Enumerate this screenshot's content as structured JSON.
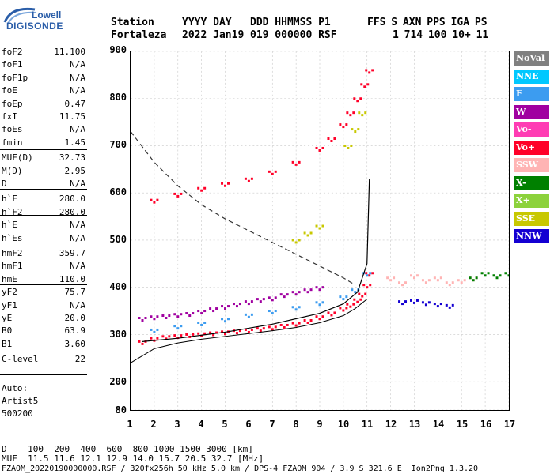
{
  "logo": {
    "brand_top": "Lowell",
    "brand_main": "DIGISONDE"
  },
  "header": {
    "labels": [
      "Station",
      "YYYY DAY",
      "DDD HHMMSS P1",
      "FFS S AXN PPS IGA PS"
    ],
    "values": [
      "Fortaleza",
      "2022 Jan19",
      "019 000000 RSF",
      "1 714 100 10+ 11"
    ]
  },
  "parameters": [
    {
      "name": "foF2",
      "value": "11.100"
    },
    {
      "name": "foF1",
      "value": "N/A"
    },
    {
      "name": "foF1p",
      "value": "N/A"
    },
    {
      "name": "foE",
      "value": "N/A"
    },
    {
      "name": "foEp",
      "value": "0.47"
    },
    {
      "name": "fxI",
      "value": "11.75"
    },
    {
      "name": "foEs",
      "value": "N/A"
    },
    {
      "name": "fmin",
      "value": "1.45"
    },
    {
      "name": "MUF(D)",
      "value": "32.73"
    },
    {
      "name": "M(D)",
      "value": "2.95"
    },
    {
      "name": "D",
      "value": "N/A"
    },
    {
      "name": "h`F",
      "value": "280.0"
    },
    {
      "name": "h`F2",
      "value": "280.0"
    },
    {
      "name": "h`E",
      "value": "N/A"
    },
    {
      "name": "h`Es",
      "value": "N/A"
    },
    {
      "name": "hmF2",
      "value": "359.7"
    },
    {
      "name": "hmF1",
      "value": "N/A"
    },
    {
      "name": "hmE",
      "value": "110.0"
    },
    {
      "name": "yF2",
      "value": "75.7"
    },
    {
      "name": "yF1",
      "value": "N/A"
    },
    {
      "name": "yE",
      "value": "20.0"
    },
    {
      "name": "B0",
      "value": "63.9"
    },
    {
      "name": "B1",
      "value": "3.60"
    },
    {
      "name": "C-level",
      "value": "22"
    }
  ],
  "auto_info": [
    "Auto:",
    "Artist5",
    "500200"
  ],
  "legend": [
    {
      "label": "NoVal",
      "color": "#808080"
    },
    {
      "label": "NNE",
      "color": "#00c8ff"
    },
    {
      "label": "E",
      "color": "#3c9cf0"
    },
    {
      "label": "W",
      "color": "#a000a0"
    },
    {
      "label": "Vo-",
      "color": "#ff3cb4"
    },
    {
      "label": "Vo+",
      "color": "#ff0028"
    },
    {
      "label": "SSW",
      "color": "#ffb4b4"
    },
    {
      "label": "X-",
      "color": "#008000"
    },
    {
      "label": "X+",
      "color": "#8cd23c"
    },
    {
      "label": "SSE",
      "color": "#c8c800"
    },
    {
      "label": "NNW",
      "color": "#1400d2"
    }
  ],
  "footer": {
    "d_line": "D    100  200  400  600  800 1000 1500 3000 [km]",
    "muf_line": "MUF  11.5 11.6 12.1 12.9 14.0 15.7 20.5 32.7 [MHz]",
    "file_line": "FZAOM_20220190000000.RSF / 320fx256h 50 kHz 5.0 km / DPS-4 FZAOM 904 / 3.9 S 321.6 E  Ion2Png 1.3.20"
  },
  "chart_data": {
    "type": "scatter",
    "title": "",
    "xlabel": "",
    "ylabel": "",
    "xlim": [
      1,
      17
    ],
    "ylim": [
      80,
      900
    ],
    "x_ticks": [
      "1",
      "2",
      "3",
      "4",
      "5",
      "6",
      "7",
      "8",
      "9",
      "10",
      "11",
      "12",
      "13",
      "14",
      "15",
      "16",
      "17"
    ],
    "y_ticks": [
      "80",
      "200",
      "300",
      "400",
      "500",
      "600",
      "700",
      "800",
      "900"
    ],
    "grid": true,
    "legend_position": "right",
    "series": [
      {
        "name": "Vo+",
        "color": "#ff0028",
        "x": [
          1.5,
          2,
          2.5,
          3,
          3.5,
          4,
          4.5,
          5,
          5.5,
          6,
          6.5,
          7,
          7.5,
          8,
          8.5,
          9,
          9.5,
          10,
          10.3,
          10.6,
          10.8,
          11.0,
          11.1
        ],
        "y": [
          285,
          292,
          296,
          298,
          300,
          302,
          304,
          306,
          308,
          310,
          313,
          316,
          320,
          324,
          330,
          338,
          346,
          356,
          364,
          374,
          386,
          405,
          430
        ]
      },
      {
        "name": "Vo+",
        "color": "#ff0028",
        "x": [
          2,
          3,
          4,
          5,
          6,
          7,
          8,
          9,
          9.5,
          10,
          10.3,
          10.6,
          10.9,
          11.1
        ],
        "y": [
          585,
          598,
          610,
          620,
          630,
          645,
          665,
          695,
          715,
          745,
          770,
          800,
          830,
          860
        ]
      },
      {
        "name": "E",
        "color": "#3c9cf0",
        "x": [
          2,
          3,
          4,
          5,
          6,
          7,
          8,
          9,
          10,
          10.5,
          11
        ],
        "y": [
          310,
          318,
          325,
          333,
          342,
          350,
          358,
          368,
          380,
          395,
          430
        ]
      },
      {
        "name": "W",
        "color": "#a000a0",
        "x": [
          1.5,
          2,
          2.5,
          3,
          3.5,
          4,
          4.5,
          5,
          5.5,
          6,
          6.5,
          7,
          7.5,
          8,
          8.5,
          9
        ],
        "y": [
          335,
          338,
          340,
          343,
          345,
          350,
          355,
          360,
          365,
          370,
          375,
          378,
          385,
          390,
          395,
          400
        ]
      },
      {
        "name": "NNW",
        "color": "#1400d2",
        "x": [
          12.5,
          13,
          13.5,
          14,
          14.5
        ],
        "y": [
          370,
          372,
          368,
          365,
          362
        ]
      },
      {
        "name": "SSW",
        "color": "#ffb4b4",
        "x": [
          12,
          12.5,
          13,
          13.5,
          14,
          14.5,
          15,
          15.5
        ],
        "y": [
          420,
          410,
          425,
          415,
          420,
          410,
          415,
          420
        ]
      },
      {
        "name": "X-",
        "color": "#008000",
        "x": [
          15.5,
          16,
          16.5,
          17
        ],
        "y": [
          420,
          430,
          425,
          430
        ]
      },
      {
        "name": "SSE",
        "color": "#c8c800",
        "x": [
          8,
          8.5,
          9,
          10.2,
          10.5,
          10.8
        ],
        "y": [
          500,
          515,
          530,
          700,
          735,
          770
        ]
      }
    ]
  }
}
